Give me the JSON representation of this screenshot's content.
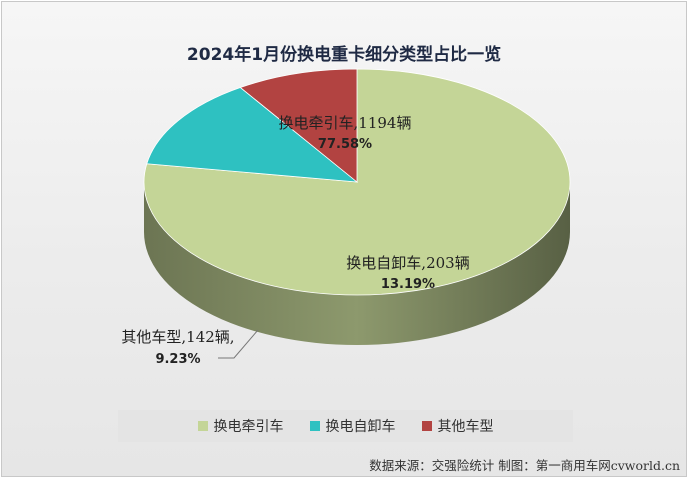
{
  "chart_data": {
    "type": "pie",
    "title": "2024年1月份换电重卡细分类型占比一览",
    "slices": [
      {
        "name": "换电牵引车",
        "count_label": "1194辆",
        "value": 1194,
        "percent": "77.58%",
        "color": "#c4d597"
      },
      {
        "name": "换电自卸车",
        "count_label": "203辆",
        "value": 203,
        "percent": "13.19%",
        "color": "#2ec1c1"
      },
      {
        "name": "其他车型",
        "count_label": "142辆",
        "value": 142,
        "percent": "9.23%",
        "color": "#b24341"
      }
    ],
    "legend_position": "bottom"
  },
  "footer": {
    "source": "数据来源：交强险统计  制图：第一商用车网cvworld.cn"
  }
}
